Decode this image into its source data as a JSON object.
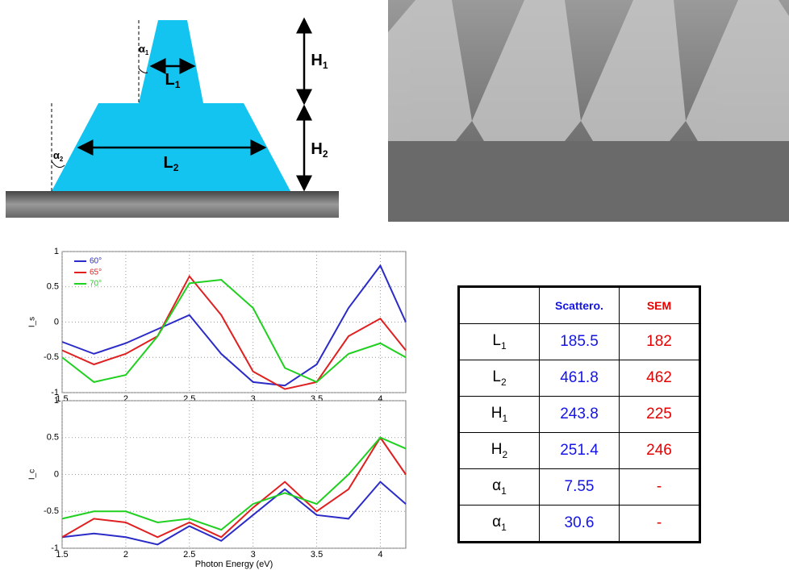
{
  "diagram": {
    "labels": [
      {
        "text": "α",
        "sub": "1"
      },
      {
        "text": "L",
        "sub": "1"
      },
      {
        "text": "α",
        "sub": "2"
      },
      {
        "text": "L",
        "sub": "2"
      },
      {
        "text": "H",
        "sub": "1"
      },
      {
        "text": "H",
        "sub": "2"
      }
    ]
  },
  "chart_data": [
    {
      "type": "line",
      "y_label": "I_s",
      "x": [
        1.5,
        1.75,
        2,
        2.25,
        2.5,
        2.75,
        3,
        3.25,
        3.5,
        3.75,
        4,
        4.2
      ],
      "xlim": [
        1.5,
        4.2
      ],
      "xticks": [
        1.5,
        2,
        2.5,
        3,
        3.5,
        4
      ],
      "ylim": [
        -1,
        1
      ],
      "yticks": [
        -1,
        -0.5,
        0,
        0.5,
        1
      ],
      "grid": true,
      "legend": "upper left",
      "series": [
        {
          "name": "60°",
          "color": "#2b2bc8",
          "values": [
            -0.28,
            -0.45,
            -0.3,
            -0.1,
            0.1,
            -0.45,
            -0.85,
            -0.9,
            -0.6,
            0.2,
            0.8,
            0.0
          ]
        },
        {
          "name": "65°",
          "color": "#e02020",
          "values": [
            -0.4,
            -0.6,
            -0.45,
            -0.2,
            0.65,
            0.1,
            -0.7,
            -0.95,
            -0.85,
            -0.2,
            0.05,
            -0.4
          ]
        },
        {
          "name": "70°",
          "color": "#20d020",
          "values": [
            -0.5,
            -0.85,
            -0.75,
            -0.2,
            0.55,
            0.6,
            0.2,
            -0.65,
            -0.85,
            -0.45,
            -0.3,
            -0.5
          ]
        }
      ]
    },
    {
      "type": "line",
      "y_label": "I_c",
      "x_label": "Photon Energy (eV)",
      "x": [
        1.5,
        1.75,
        2,
        2.25,
        2.5,
        2.75,
        3,
        3.25,
        3.5,
        3.75,
        4,
        4.2
      ],
      "xlim": [
        1.5,
        4.2
      ],
      "xticks": [
        1.5,
        2,
        2.5,
        3,
        3.5,
        4
      ],
      "ylim": [
        -1,
        1
      ],
      "yticks": [
        -1,
        -0.5,
        0,
        0.5,
        1
      ],
      "grid": true,
      "series": [
        {
          "color": "#2b2bc8",
          "values": [
            -0.85,
            -0.8,
            -0.85,
            -0.95,
            -0.7,
            -0.9,
            -0.55,
            -0.2,
            -0.55,
            -0.6,
            -0.1,
            -0.4
          ]
        },
        {
          "color": "#e02020",
          "values": [
            -0.85,
            -0.6,
            -0.65,
            -0.85,
            -0.65,
            -0.85,
            -0.45,
            -0.1,
            -0.5,
            -0.2,
            0.5,
            0.0
          ]
        },
        {
          "color": "#20d020",
          "values": [
            -0.6,
            -0.5,
            -0.5,
            -0.65,
            -0.6,
            -0.75,
            -0.4,
            -0.25,
            -0.4,
            0.0,
            0.5,
            0.35
          ]
        }
      ]
    }
  ],
  "table": {
    "columns": [
      "Scattero.",
      "SEM"
    ],
    "rows": [
      {
        "label": {
          "text": "L",
          "sub": "1"
        },
        "values": [
          "185.5",
          "182"
        ]
      },
      {
        "label": {
          "text": "L",
          "sub": "2"
        },
        "values": [
          "461.8",
          "462"
        ]
      },
      {
        "label": {
          "text": "H",
          "sub": "1"
        },
        "values": [
          "243.8",
          "225"
        ]
      },
      {
        "label": {
          "text": "H",
          "sub": "2"
        },
        "values": [
          "251.4",
          "246"
        ]
      },
      {
        "label": {
          "text": "α",
          "sub": "1"
        },
        "values": [
          "7.55",
          "-"
        ]
      },
      {
        "label": {
          "text": "α",
          "sub": "1"
        },
        "values": [
          "30.6",
          "-"
        ]
      }
    ]
  }
}
